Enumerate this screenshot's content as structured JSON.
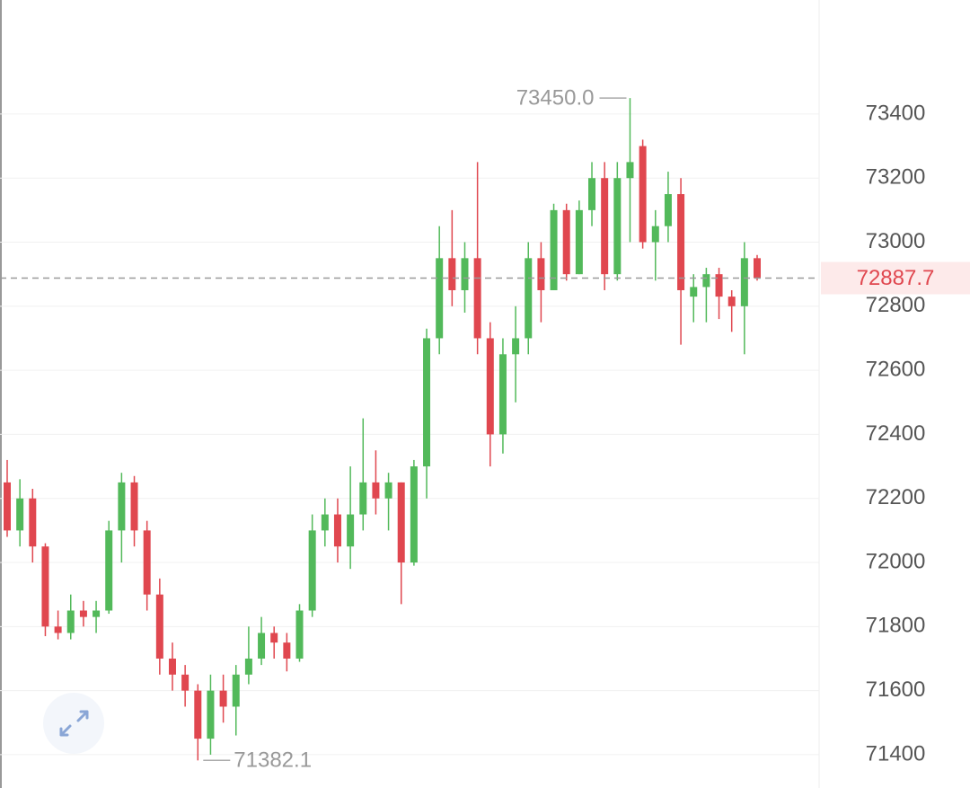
{
  "chart_data": {
    "type": "candlestick",
    "up_color": "#52b95a",
    "down_color": "#e0474f",
    "open": [
      72250,
      72100,
      72200,
      72050,
      71800,
      71780,
      71850,
      71830,
      71850,
      72100,
      72250,
      72100,
      71900,
      71700,
      71650,
      71600,
      71450,
      71600,
      71550,
      71650,
      71700,
      71780,
      71750,
      71700,
      71850,
      72100,
      72150,
      72050,
      72150,
      72250,
      72200,
      72250,
      72000,
      72300,
      72700,
      72950,
      72850,
      72950,
      72700,
      72400,
      72650,
      72700,
      72950,
      72850,
      73100,
      72900,
      73100,
      73200,
      72900,
      73200,
      73300,
      73000,
      73050,
      73150,
      72830,
      72860,
      72900,
      72830,
      72800,
      72950
    ],
    "high": [
      72320,
      72260,
      72230,
      72060,
      71850,
      71900,
      71880,
      71880,
      72130,
      72280,
      72270,
      72130,
      71950,
      71750,
      71680,
      71620,
      71650,
      71650,
      71680,
      71800,
      71830,
      71800,
      71780,
      71870,
      72150,
      72200,
      72200,
      72300,
      72450,
      72350,
      72280,
      72250,
      72320,
      72730,
      73050,
      73100,
      73000,
      73250,
      72750,
      72700,
      72800,
      73000,
      73000,
      73120,
      73120,
      73130,
      73250,
      73250,
      73250,
      73450,
      73320,
      73100,
      73220,
      73200,
      72900,
      72920,
      72920,
      72850,
      73000,
      72960
    ],
    "low": [
      72080,
      72050,
      72000,
      71770,
      71760,
      71760,
      71800,
      71780,
      71840,
      72000,
      72050,
      71850,
      71650,
      71600,
      71550,
      71382.1,
      71400,
      71500,
      71460,
      71620,
      71680,
      71700,
      71660,
      71690,
      71830,
      72050,
      72000,
      71980,
      72100,
      72150,
      72100,
      71870,
      71990,
      72200,
      72650,
      72800,
      72780,
      72650,
      72300,
      72340,
      72500,
      72650,
      72750,
      72850,
      72880,
      72900,
      73050,
      72850,
      72880,
      73000,
      72980,
      72880,
      73000,
      72680,
      72750,
      72750,
      72760,
      72720,
      72650,
      72880
    ],
    "close": [
      72100,
      72200,
      72050,
      71800,
      71780,
      71850,
      71830,
      71850,
      72100,
      72250,
      72100,
      71900,
      71700,
      71650,
      71600,
      71450,
      71600,
      71550,
      71650,
      71700,
      71780,
      71750,
      71700,
      71850,
      72100,
      72150,
      72050,
      72150,
      72250,
      72200,
      72250,
      72000,
      72300,
      72700,
      72950,
      72850,
      72950,
      72700,
      72400,
      72650,
      72700,
      72950,
      72850,
      73100,
      72900,
      73100,
      73200,
      72900,
      73200,
      73250,
      73000,
      73050,
      73150,
      72850,
      72860,
      72900,
      72830,
      72800,
      72950,
      72887.7
    ],
    "ylim": [
      71296,
      73756
    ],
    "yticks": [
      71400,
      71600,
      71800,
      72000,
      72200,
      72400,
      72600,
      72800,
      73000,
      73200,
      73400
    ],
    "grid": true,
    "last_price": 72887.7,
    "annotations": [
      {
        "value": 73450,
        "label": "73450.0",
        "index": 49
      },
      {
        "value": 71382.1,
        "index": 15
      }
    ]
  }
}
